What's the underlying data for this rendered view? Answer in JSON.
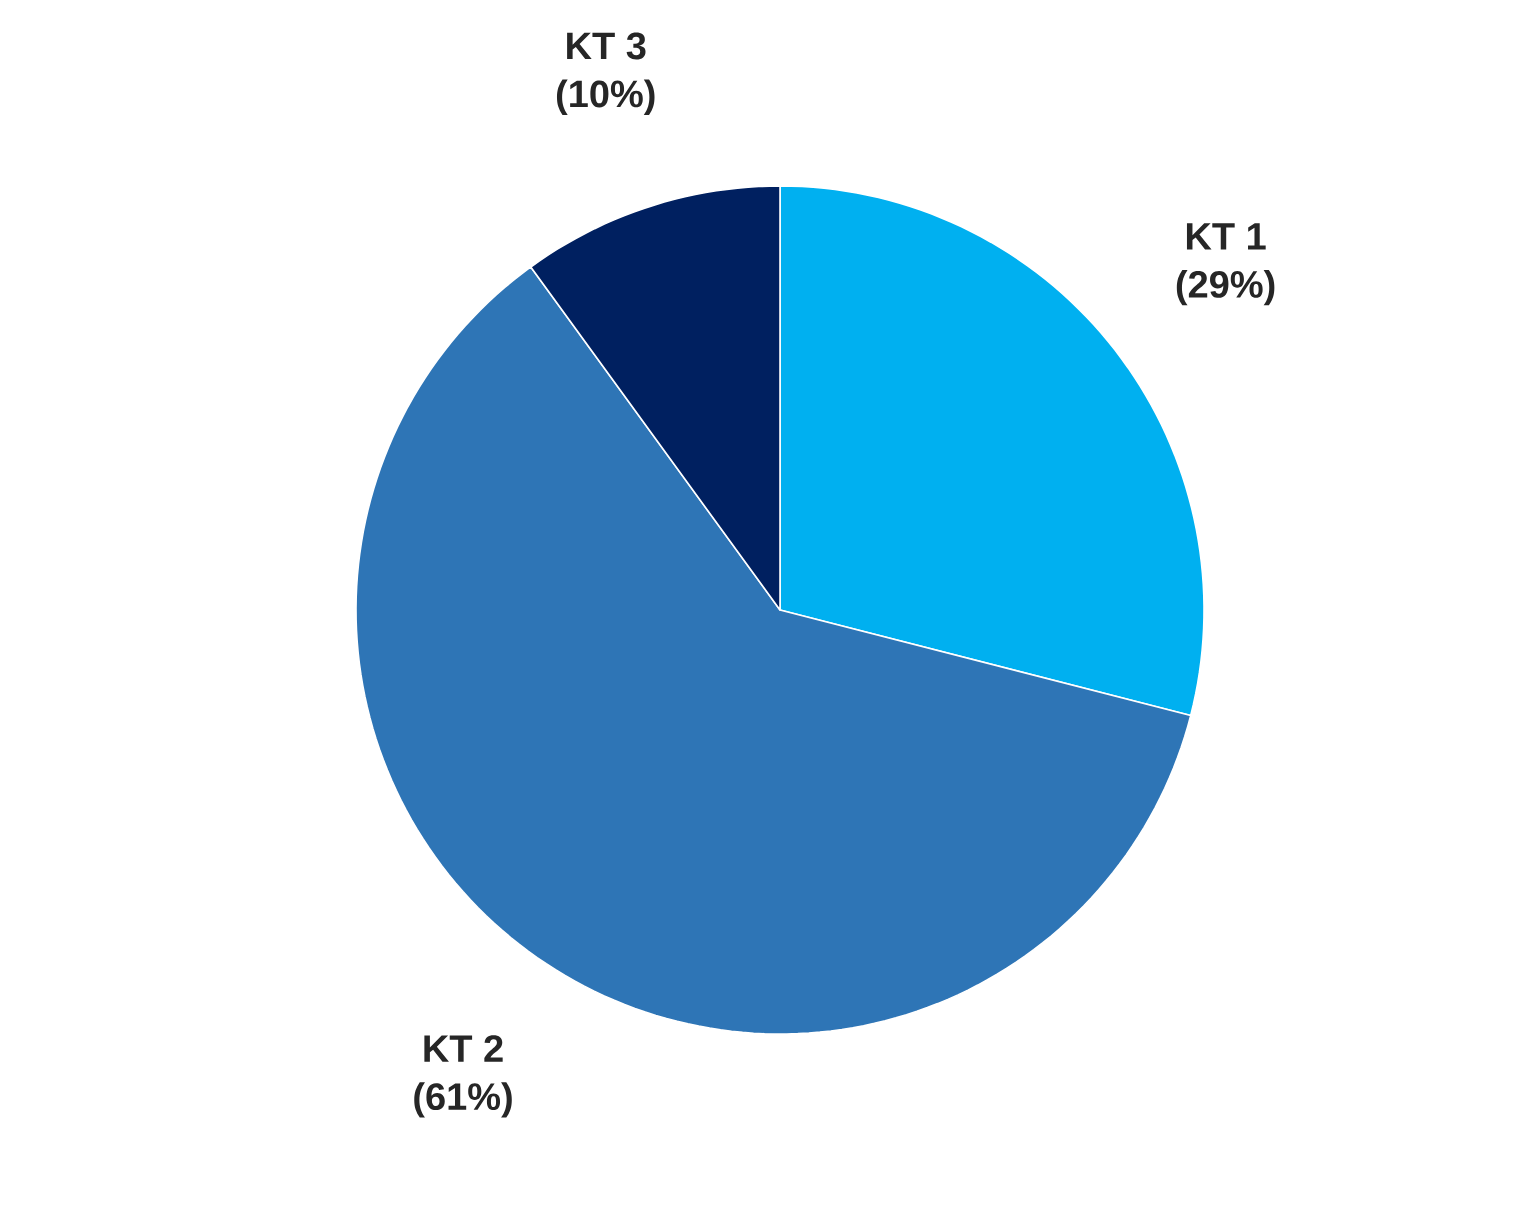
{
  "chart_data": {
    "type": "pie",
    "categories": [
      "KT 1",
      "KT 2",
      "KT 3"
    ],
    "values": [
      29,
      61,
      10
    ],
    "colors": [
      "#00b0f0",
      "#2e75b6",
      "#002060"
    ],
    "value_labels": [
      "(29%)",
      "(61%)",
      "(10%)"
    ]
  }
}
